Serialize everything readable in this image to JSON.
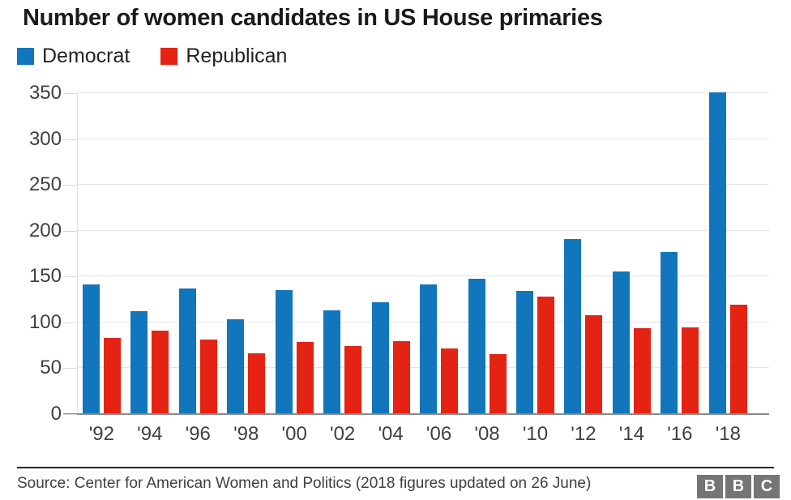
{
  "title": "Number of women candidates in US House primaries",
  "legend": [
    {
      "label": "Democrat",
      "color": "#1176BC"
    },
    {
      "label": "Republican",
      "color": "#E42313"
    }
  ],
  "source": "Source: Center for American Women and Politics (2018 figures updated on 26 June)",
  "logo": {
    "letters": [
      "B",
      "B",
      "C"
    ]
  },
  "colors": {
    "democrat": "#1176BC",
    "republican": "#E42313",
    "grid": "#E4E4E4",
    "axis": "#8A8A8A",
    "text": "#404040",
    "title": "#1A1A1A",
    "logo_box": "#757575"
  },
  "chart_data": {
    "type": "bar",
    "title": "Number of women candidates in US House primaries",
    "categories": [
      "'92",
      "'94",
      "'96",
      "'98",
      "'00",
      "'02",
      "'04",
      "'06",
      "'08",
      "'10",
      "'12",
      "'14",
      "'16",
      "'18"
    ],
    "series": [
      {
        "name": "Democrat",
        "color": "#1176BC",
        "values": [
          141,
          112,
          137,
          103,
          135,
          113,
          122,
          141,
          148,
          134,
          191,
          156,
          177,
          351
        ]
      },
      {
        "name": "Republican",
        "color": "#E42313",
        "values": [
          83,
          91,
          81,
          66,
          79,
          74,
          80,
          72,
          65,
          128,
          108,
          94,
          95,
          119
        ]
      }
    ],
    "xlabel": "",
    "ylabel": "",
    "ylim": [
      0,
      350
    ],
    "yticks": [
      0,
      50,
      100,
      150,
      200,
      250,
      300,
      350
    ],
    "grid": true,
    "legend_position": "top-left"
  }
}
